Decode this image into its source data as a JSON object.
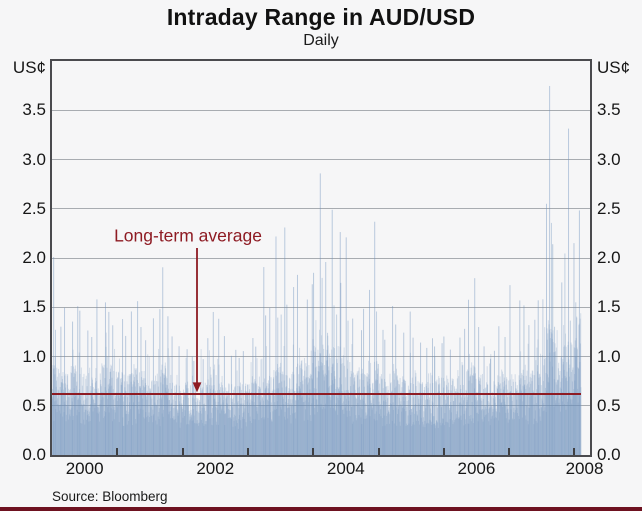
{
  "page": {
    "title": "Intraday Range in AUD/USD",
    "subtitle": "Daily",
    "source": "Source: Bloomberg"
  },
  "chart_data": {
    "type": "bar",
    "title": "Intraday Range in AUD/USD",
    "subtitle": "Daily",
    "ylabel": "US¢",
    "unit_left": "US¢",
    "unit_right": "US¢",
    "ylim": [
      0,
      4.0
    ],
    "yticks": [
      0.0,
      0.5,
      1.0,
      1.5,
      2.0,
      2.5,
      3.0,
      3.5
    ],
    "ytick_labels": [
      "0.0",
      "0.5",
      "1.0",
      "1.5",
      "2.0",
      "2.5",
      "3.0",
      "3.5"
    ],
    "xlabel_years": [
      2000,
      2002,
      2004,
      2006,
      2008
    ],
    "xtick_years": [
      2001,
      2002,
      2003,
      2004,
      2005,
      2006,
      2007,
      2008
    ],
    "x_start_month": "2000-01",
    "x_end_month": "2008-02",
    "grid": true,
    "average": {
      "label": "Long-term average",
      "value": 0.62
    },
    "annotation_arrow_target_value": 0.62,
    "source": "Source: Bloomberg",
    "monthly_envelope": {
      "note": "daily intraday range in US cents, summarised per month as typical (median) and maximum spike read from the chart",
      "start_month": "2000-01",
      "median": [
        0.62,
        0.6,
        0.6,
        0.62,
        0.64,
        0.6,
        0.58,
        0.56,
        0.6,
        0.64,
        0.62,
        0.58,
        0.58,
        0.56,
        0.58,
        0.6,
        0.58,
        0.55,
        0.55,
        0.56,
        0.62,
        0.58,
        0.55,
        0.52,
        0.52,
        0.5,
        0.5,
        0.52,
        0.54,
        0.56,
        0.55,
        0.52,
        0.5,
        0.52,
        0.5,
        0.52,
        0.58,
        0.56,
        0.6,
        0.58,
        0.6,
        0.64,
        0.66,
        0.6,
        0.62,
        0.66,
        0.64,
        0.66,
        0.75,
        0.85,
        0.8,
        0.75,
        0.75,
        0.7,
        0.65,
        0.6,
        0.58,
        0.6,
        0.65,
        0.66,
        0.56,
        0.54,
        0.58,
        0.55,
        0.54,
        0.56,
        0.54,
        0.52,
        0.52,
        0.54,
        0.52,
        0.54,
        0.55,
        0.53,
        0.55,
        0.56,
        0.6,
        0.62,
        0.56,
        0.53,
        0.52,
        0.53,
        0.56,
        0.55,
        0.55,
        0.58,
        0.62,
        0.58,
        0.58,
        0.62,
        0.72,
        0.95,
        0.78,
        0.72,
        0.85,
        0.78,
        0.95,
        1.0
      ],
      "max": [
        2.05,
        1.3,
        1.5,
        1.35,
        1.55,
        1.45,
        1.25,
        1.2,
        1.6,
        1.55,
        1.45,
        1.3,
        1.4,
        1.2,
        1.5,
        1.6,
        1.3,
        1.2,
        1.4,
        1.5,
        1.9,
        1.4,
        1.2,
        1.1,
        1.1,
        1.0,
        0.95,
        1.0,
        1.2,
        1.45,
        1.4,
        1.2,
        1.0,
        1.1,
        1.0,
        1.05,
        1.2,
        1.1,
        1.95,
        1.4,
        1.5,
        2.25,
        2.3,
        1.5,
        1.7,
        1.8,
        1.6,
        1.7,
        1.9,
        2.9,
        2.0,
        2.45,
        2.3,
        1.8,
        2.2,
        1.4,
        1.3,
        1.5,
        1.7,
        2.35,
        1.3,
        1.2,
        1.5,
        1.3,
        1.25,
        1.5,
        1.2,
        1.15,
        1.1,
        1.2,
        1.1,
        1.15,
        1.2,
        1.1,
        1.2,
        1.3,
        1.55,
        1.85,
        1.3,
        1.1,
        1.0,
        1.05,
        1.3,
        1.2,
        1.75,
        1.6,
        1.5,
        1.3,
        1.4,
        1.6,
        2.55,
        3.8,
        2.1,
        1.8,
        3.3,
        2.2,
        2.5,
        2.3
      ]
    },
    "colors": {
      "bar": "#6f93bd",
      "average_line": "#8e1b23",
      "annotation_text": "#8e1b23",
      "gridline": "#a8acb1",
      "axis_border": "#4a4a4e",
      "background": "#f6f6f7",
      "footer_rule": "#6e1220",
      "text": "#161616"
    },
    "seed": 20080214
  }
}
